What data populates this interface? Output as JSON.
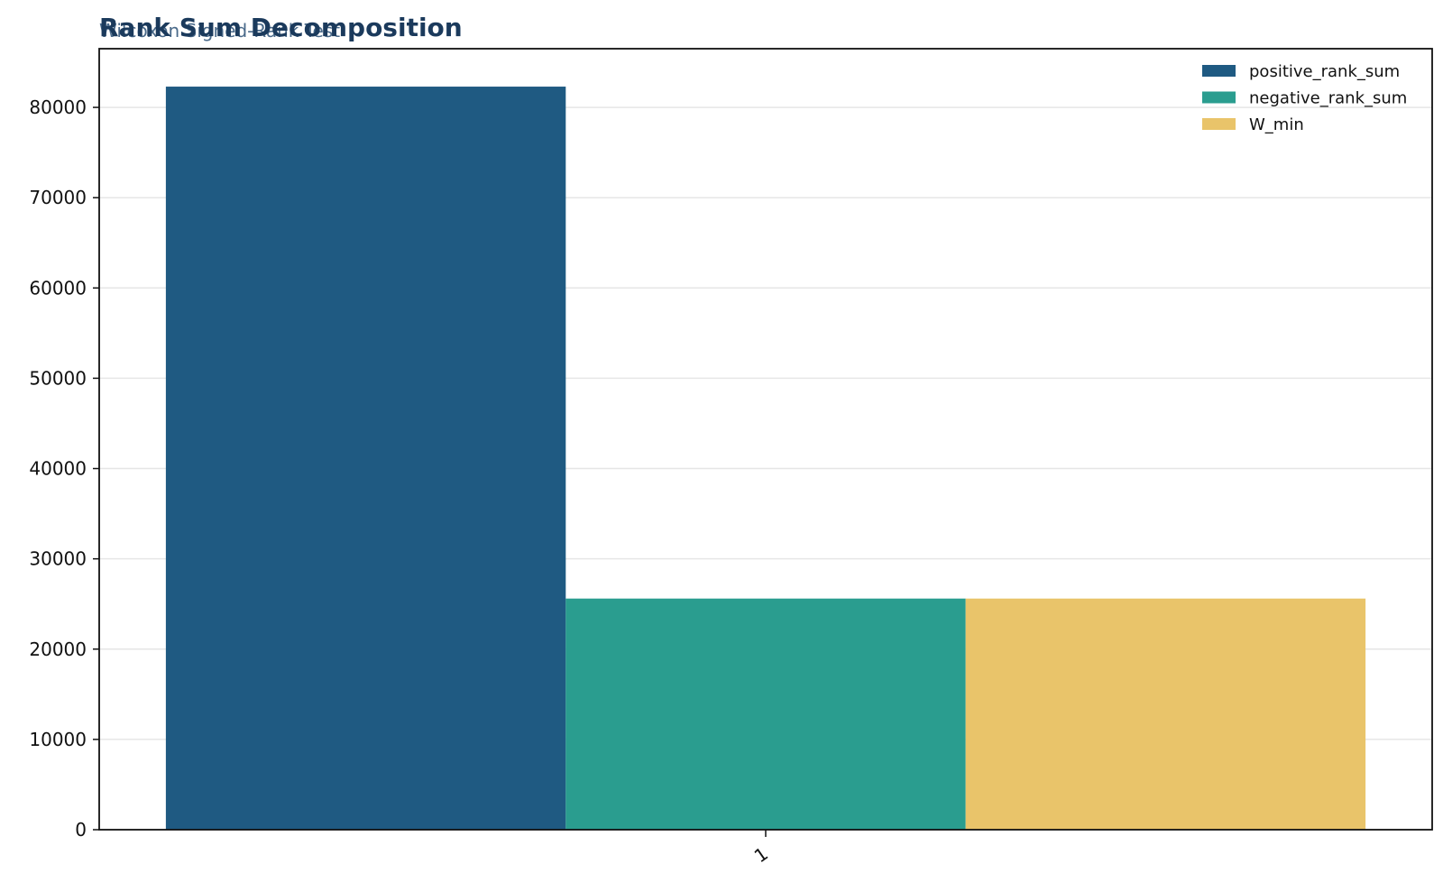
{
  "chart_data": {
    "type": "bar",
    "title": "Rank Sum Decomposition",
    "subtitle": "Wilcoxon Signed-Rank Test",
    "categories": [
      "1"
    ],
    "series": [
      {
        "name": "positive_rank_sum",
        "values": [
          82300
        ],
        "color": "#1f5a82"
      },
      {
        "name": "negative_rank_sum",
        "values": [
          25600
        ],
        "color": "#2a9d8f"
      },
      {
        "name": "W_min",
        "values": [
          25600
        ],
        "color": "#e9c46a"
      }
    ],
    "yticks": [
      "0",
      "10000",
      "20000",
      "30000",
      "40000",
      "50000",
      "60000",
      "70000",
      "80000"
    ],
    "ylim": [
      0,
      86500
    ],
    "grid": "y",
    "legend_position": "top-right",
    "title_color": "#1b3a5c",
    "subtitle_color": "#4a6a8a"
  }
}
